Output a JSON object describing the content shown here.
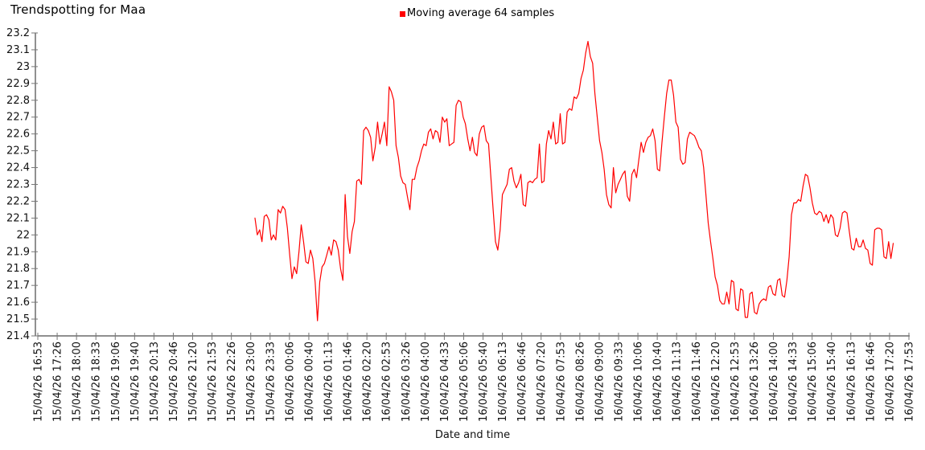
{
  "chart_data": {
    "type": "line",
    "title": "Trendspotting for Maa",
    "legend": "Moving average 64 samples",
    "xlabel": "Date and time",
    "series_color": "#ff0000",
    "ylim": [
      21.4,
      23.2
    ],
    "y_tick_step": 0.1,
    "grid": "off",
    "legend_position": "top-center",
    "y_tick_labels": [
      "23.2",
      "23.1",
      "23",
      "22.9",
      "22.8",
      "22.7",
      "22.6",
      "22.5",
      "22.4",
      "22.3",
      "22.2",
      "22.1",
      "22",
      "21.9",
      "21.8",
      "21.7",
      "21.6",
      "21.5",
      "21.4"
    ],
    "x_tick_labels": [
      "15/04/26 16:53",
      "15/04/26 17:26",
      "15/04/26 18:00",
      "15/04/26 18:33",
      "15/04/26 19:06",
      "15/04/26 19:40",
      "15/04/26 20:13",
      "15/04/26 20:46",
      "15/04/26 21:20",
      "15/04/26 21:53",
      "15/04/26 22:26",
      "15/04/26 23:00",
      "15/04/26 23:33",
      "16/04/26 00:06",
      "16/04/26 00:40",
      "16/04/26 01:13",
      "16/04/26 01:46",
      "16/04/26 02:20",
      "16/04/26 02:53",
      "16/04/26 03:26",
      "16/04/26 04:00",
      "16/04/26 04:33",
      "16/04/26 05:06",
      "16/04/26 05:40",
      "16/04/26 06:13",
      "16/04/26 06:46",
      "16/04/26 07:20",
      "16/04/26 07:53",
      "16/04/26 08:26",
      "16/04/26 09:00",
      "16/04/26 09:33",
      "16/04/26 10:06",
      "16/04/26 10:40",
      "16/04/26 11:13",
      "16/04/26 11:46",
      "16/04/26 12:20",
      "16/04/26 12:53",
      "16/04/26 13:26",
      "16/04/26 14:00",
      "16/04/26 14:33",
      "16/04/26 15:06",
      "16/04/26 15:40",
      "16/04/26 16:13",
      "16/04/26 16:46",
      "16/04/26 17:20",
      "16/04/26 17:53"
    ],
    "x_axis_total_minutes": 1500,
    "y_axis_edge_label": "E",
    "series": [
      {
        "name": "Moving average 64 samples",
        "start_time": "15/04/26 23:07",
        "end_time": "16/04/26 17:26",
        "start_offset_min": 374,
        "end_offset_min": 1473,
        "values": [
          22.1,
          22.0,
          22.03,
          21.96,
          22.11,
          22.12,
          22.09,
          21.97,
          22.0,
          21.97,
          22.15,
          22.13,
          22.17,
          22.15,
          22.04,
          21.88,
          21.74,
          21.81,
          21.77,
          21.9,
          22.06,
          21.96,
          21.84,
          21.83,
          21.91,
          21.86,
          21.72,
          21.49,
          21.72,
          21.81,
          21.83,
          21.88,
          21.93,
          21.88,
          21.97,
          21.96,
          21.91,
          21.8,
          21.73,
          22.24,
          21.99,
          21.89,
          22.02,
          22.08,
          22.32,
          22.33,
          22.3,
          22.62,
          22.64,
          22.62,
          22.58,
          22.44,
          22.52,
          22.67,
          22.54,
          22.6,
          22.67,
          22.53,
          22.88,
          22.85,
          22.8,
          22.53,
          22.46,
          22.35,
          22.31,
          22.3,
          22.22,
          22.15,
          22.33,
          22.33,
          22.4,
          22.44,
          22.5,
          22.54,
          22.53,
          22.61,
          22.63,
          22.57,
          22.62,
          22.61,
          22.55,
          22.7,
          22.67,
          22.69,
          22.53,
          22.54,
          22.55,
          22.77,
          22.8,
          22.79,
          22.7,
          22.66,
          22.57,
          22.5,
          22.58,
          22.49,
          22.47,
          22.6,
          22.64,
          22.65,
          22.56,
          22.54,
          22.34,
          22.15,
          21.96,
          21.91,
          22.03,
          22.24,
          22.27,
          22.3,
          22.39,
          22.4,
          22.32,
          22.28,
          22.31,
          22.36,
          22.18,
          22.17,
          22.31,
          22.32,
          22.31,
          22.33,
          22.34,
          22.54,
          22.31,
          22.32,
          22.54,
          22.62,
          22.57,
          22.67,
          22.54,
          22.55,
          22.72,
          22.54,
          22.55,
          22.73,
          22.75,
          22.74,
          22.82,
          22.81,
          22.84,
          22.93,
          22.98,
          23.08,
          23.15,
          23.06,
          23.02,
          22.84,
          22.7,
          22.56,
          22.49,
          22.39,
          22.24,
          22.18,
          22.16,
          22.4,
          22.25,
          22.3,
          22.33,
          22.36,
          22.38,
          22.23,
          22.2,
          22.36,
          22.39,
          22.34,
          22.45,
          22.55,
          22.49,
          22.55,
          22.58,
          22.59,
          22.63,
          22.56,
          22.39,
          22.38,
          22.55,
          22.7,
          22.84,
          22.92,
          22.92,
          22.83,
          22.67,
          22.64,
          22.45,
          22.42,
          22.43,
          22.57,
          22.61,
          22.6,
          22.59,
          22.56,
          22.52,
          22.5,
          22.4,
          22.24,
          22.07,
          21.96,
          21.86,
          21.75,
          21.7,
          21.61,
          21.59,
          21.59,
          21.66,
          21.59,
          21.73,
          21.72,
          21.56,
          21.55,
          21.68,
          21.67,
          21.51,
          21.51,
          21.65,
          21.66,
          21.54,
          21.53,
          21.59,
          21.61,
          21.62,
          21.61,
          21.69,
          21.7,
          21.65,
          21.64,
          21.73,
          21.74,
          21.64,
          21.63,
          21.73,
          21.87,
          22.12,
          22.19,
          22.19,
          22.21,
          22.2,
          22.29,
          22.36,
          22.35,
          22.28,
          22.19,
          22.13,
          22.12,
          22.14,
          22.13,
          22.08,
          22.12,
          22.07,
          22.12,
          22.1,
          22.0,
          21.99,
          22.04,
          22.13,
          22.14,
          22.13,
          22.02,
          21.92,
          21.91,
          21.98,
          21.93,
          21.93,
          21.97,
          21.92,
          21.91,
          21.83,
          21.82,
          22.03,
          22.04,
          22.04,
          22.03,
          21.87,
          21.86,
          21.96,
          21.86,
          21.95
        ]
      }
    ]
  }
}
